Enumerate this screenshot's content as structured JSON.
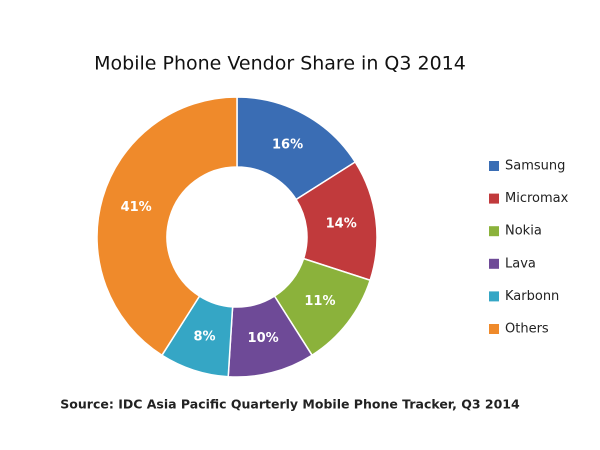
{
  "chart_data": {
    "type": "donut",
    "title": "Mobile Phone Vendor Share in Q3 2014",
    "categories": [
      "Samsung",
      "Micromax",
      "Nokia",
      "Lava",
      "Karbonn",
      "Others"
    ],
    "values": [
      16,
      14,
      11,
      10,
      8,
      41
    ],
    "value_labels": [
      "16%",
      "14%",
      "11%",
      "10%",
      "8%",
      "41%"
    ],
    "colors": [
      "#3a6db4",
      "#c13a3c",
      "#8bb23b",
      "#6e4a97",
      "#35a6c5",
      "#ef8a2b"
    ],
    "legend": "right",
    "source": "Source: IDC Asia Pacific Quarterly Mobile Phone Tracker, Q3 2014"
  }
}
